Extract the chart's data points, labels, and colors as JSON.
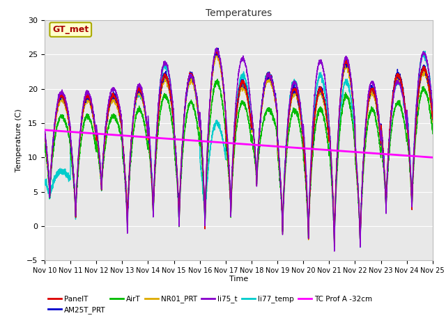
{
  "title": "Temperatures",
  "xlabel": "Time",
  "ylabel": "Temperature (C)",
  "xlim": [
    0,
    15
  ],
  "ylim": [
    -5,
    30
  ],
  "yticks": [
    -5,
    0,
    5,
    10,
    15,
    20,
    25,
    30
  ],
  "xtick_labels": [
    "Nov 10",
    "Nov 11",
    "Nov 12",
    "Nov 13",
    "Nov 14",
    "Nov 15",
    "Nov 16",
    "Nov 17",
    "Nov 18",
    "Nov 19",
    "Nov 20",
    "Nov 21",
    "Nov 22",
    "Nov 23",
    "Nov 24",
    "Nov 25"
  ],
  "plot_bg": "#e8e8e8",
  "fig_bg": "#ffffff",
  "grid_color": "#ffffff",
  "series": {
    "PanelT": {
      "color": "#dd0000",
      "lw": 1.0,
      "zorder": 4
    },
    "AM25T_PRT": {
      "color": "#0000cc",
      "lw": 1.0,
      "zorder": 4
    },
    "AirT": {
      "color": "#00bb00",
      "lw": 1.0,
      "zorder": 3
    },
    "NR01_PRT": {
      "color": "#ddaa00",
      "lw": 1.0,
      "zorder": 3
    },
    "li75_t": {
      "color": "#8800cc",
      "lw": 1.0,
      "zorder": 5
    },
    "li77_temp": {
      "color": "#00cccc",
      "lw": 1.0,
      "zorder": 3
    },
    "TC Prof A -32cm": {
      "color": "#ff00ff",
      "lw": 2.0,
      "zorder": 6
    }
  },
  "annotation": {
    "text": "GT_met",
    "fc": "#ffffcc",
    "ec": "#aaaa00",
    "color": "#aa0000",
    "fontsize": 9,
    "fontweight": "bold"
  },
  "peaks_main": [
    19,
    19,
    19,
    20,
    22,
    22,
    25.5,
    21,
    22,
    20,
    20,
    24,
    20,
    22,
    23
  ],
  "troughs_main": [
    4,
    1,
    5,
    0,
    1,
    0,
    -0.5,
    1.5,
    6,
    -1,
    -2,
    -3,
    -3,
    2,
    2
  ],
  "peaks_li75": [
    19.5,
    19.5,
    20,
    20.5,
    23.8,
    22,
    25.6,
    24.4,
    22,
    21,
    24,
    24.5,
    21,
    21,
    25.2
  ],
  "troughs_li75": [
    4,
    1,
    5,
    -1.5,
    1,
    -0.5,
    -0.3,
    1.5,
    6,
    -1.5,
    -2,
    -4,
    -3.5,
    1.5,
    2
  ],
  "peaks_li77": [
    8,
    19,
    19,
    19.5,
    23.5,
    21.5,
    15,
    22,
    22,
    21,
    22,
    21,
    20,
    21,
    25
  ],
  "troughs_li77": [
    4,
    1,
    5,
    0,
    1,
    0,
    0,
    1.5,
    6,
    -1,
    -2,
    -3,
    -3,
    2,
    2
  ],
  "peaks_air": [
    16,
    16,
    16,
    17,
    19,
    18,
    21,
    18,
    17,
    17,
    17,
    19,
    17,
    18,
    20
  ],
  "tc_start": 14.0,
  "tc_end": 10.0
}
